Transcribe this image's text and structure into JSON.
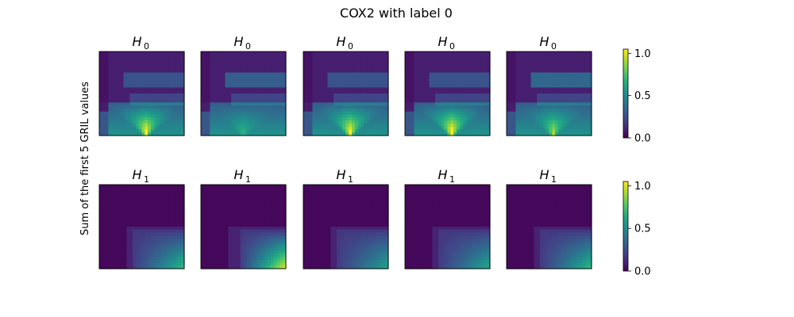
{
  "figure": {
    "suptitle": "COX2 with label 0",
    "ylabel": "Sum of the first 5 GRIL values"
  },
  "chart_data": {
    "type": "heatmap",
    "colormap": "viridis",
    "rows": [
      {
        "panel_title": "H",
        "panel_subscript": "0",
        "colorbar": {
          "range": [
            0,
            1.05
          ],
          "ticks": [
            "0.0",
            "0.5",
            "1.0"
          ]
        },
        "panels": [
          {
            "peak": 1.0,
            "style": "h0",
            "variant": 0
          },
          {
            "peak": 0.55,
            "style": "h0",
            "variant": 1
          },
          {
            "peak": 1.0,
            "style": "h0",
            "variant": 0
          },
          {
            "peak": 1.05,
            "style": "h0",
            "variant": 0
          },
          {
            "peak": 0.8,
            "style": "h0",
            "variant": 2
          }
        ]
      },
      {
        "panel_title": "H",
        "panel_subscript": "1",
        "colorbar": {
          "range": [
            0,
            1.05
          ],
          "ticks": [
            "0.0",
            "0.5",
            "1.0"
          ]
        },
        "panels": [
          {
            "peak": 0.7,
            "style": "h1",
            "variant": 0
          },
          {
            "peak": 1.0,
            "style": "h1",
            "variant": 1
          },
          {
            "peak": 0.6,
            "style": "h1",
            "variant": 0
          },
          {
            "peak": 0.62,
            "style": "h1",
            "variant": 0
          },
          {
            "peak": 0.7,
            "style": "h1",
            "variant": 0
          }
        ]
      }
    ]
  }
}
